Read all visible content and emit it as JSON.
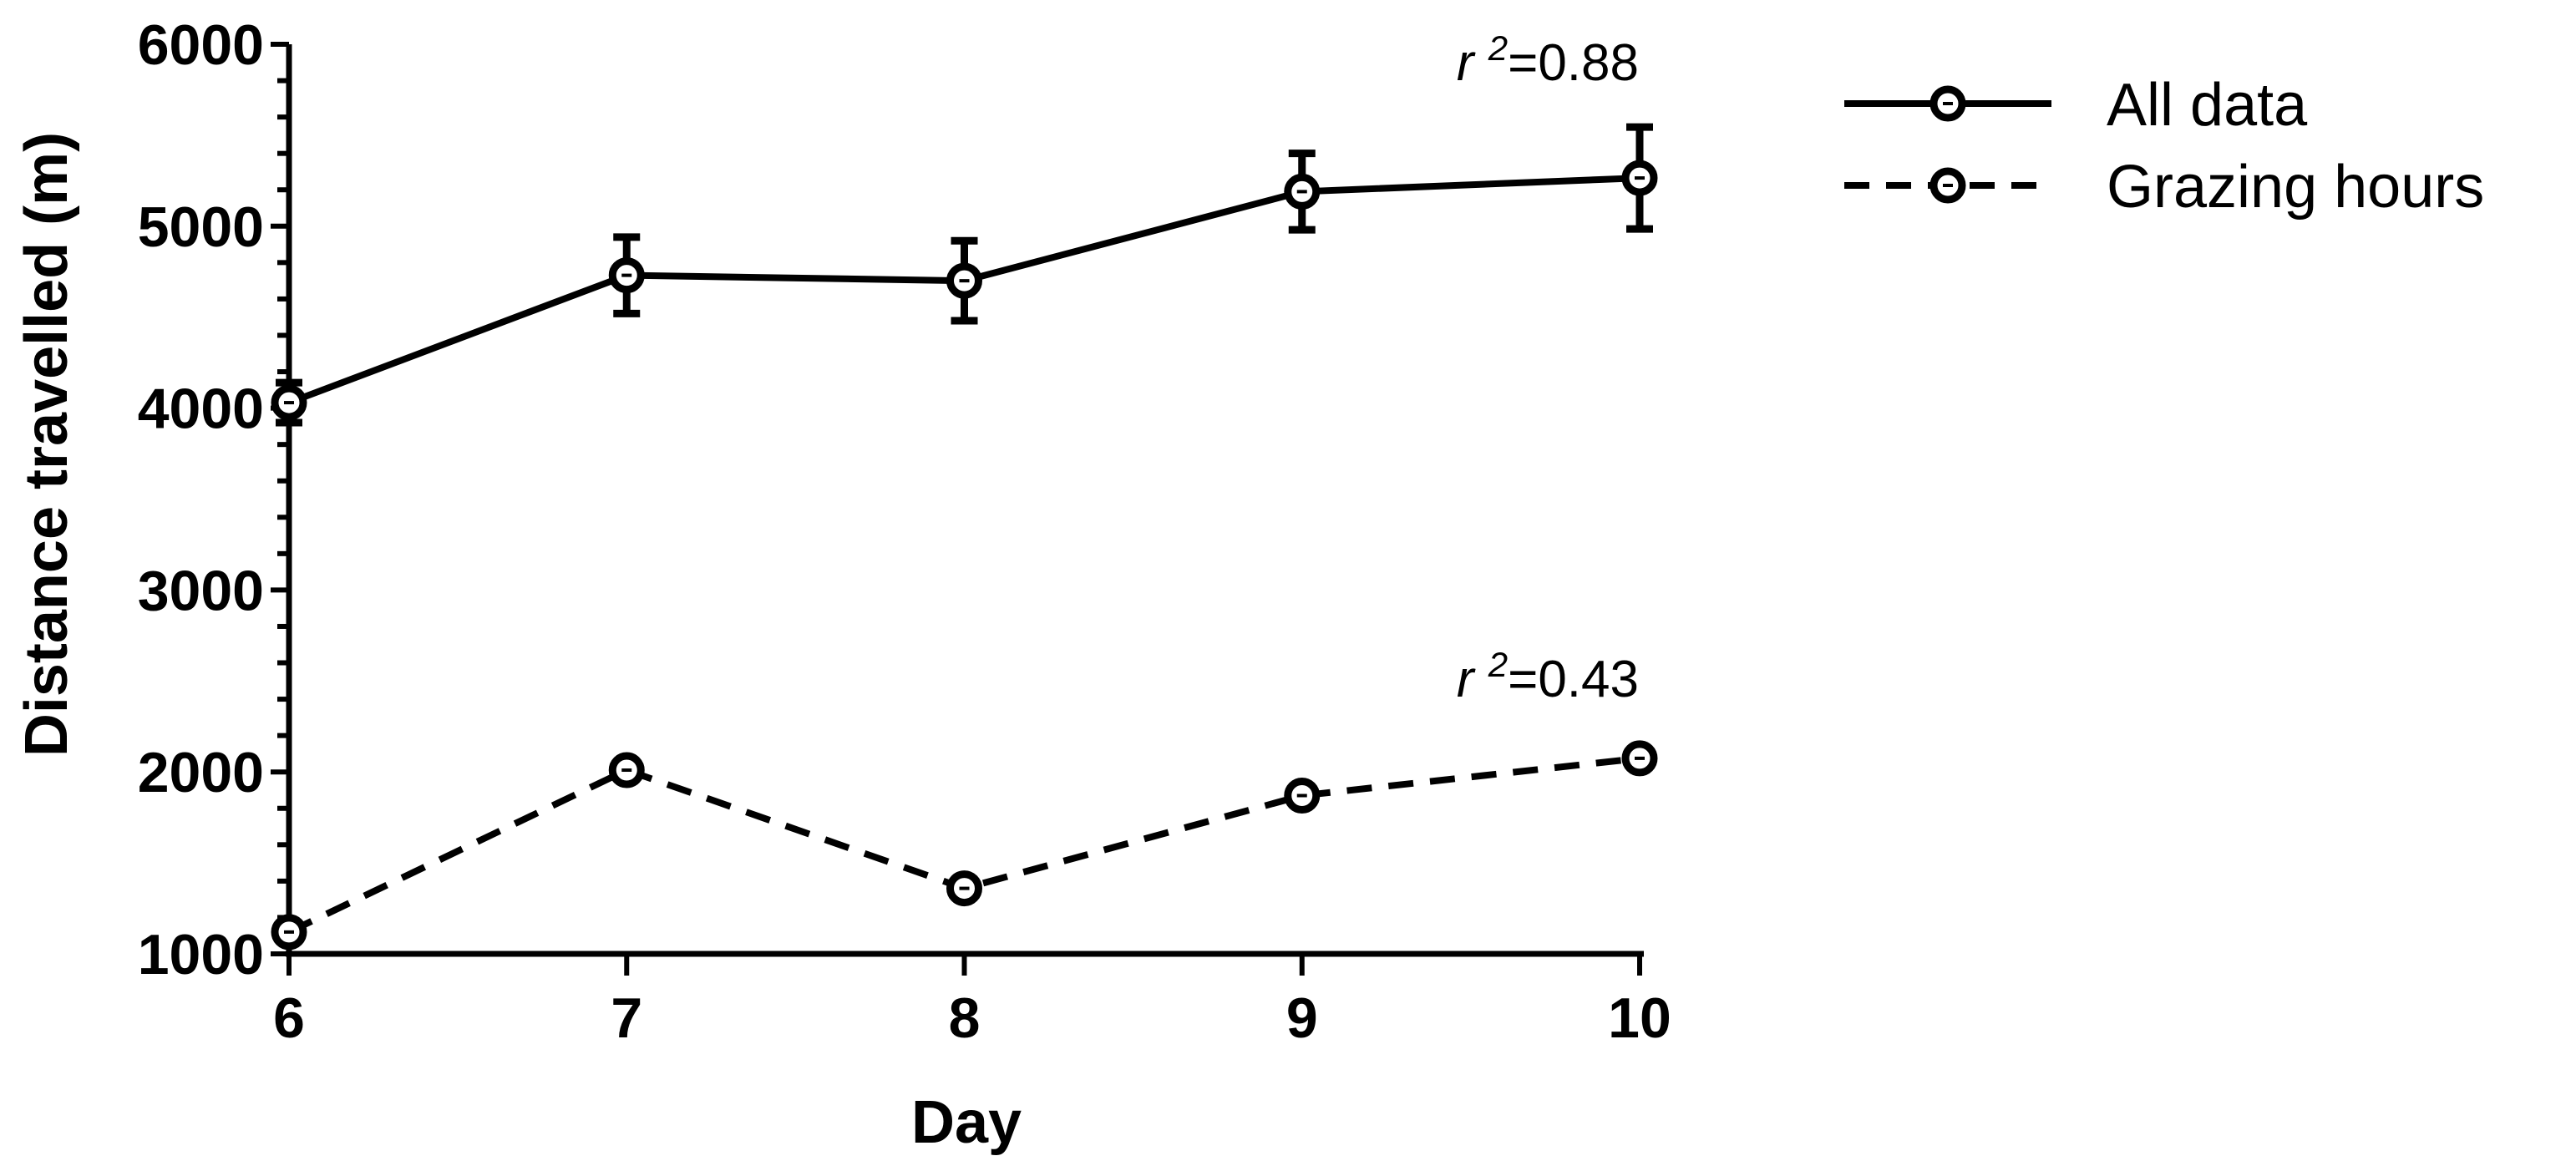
{
  "chart_data": {
    "type": "line",
    "xlabel": "Day",
    "ylabel": "Distance travelled (m)",
    "x": [
      6,
      7,
      8,
      9,
      10
    ],
    "xlim": [
      6,
      10
    ],
    "ylim": [
      1000,
      6000
    ],
    "xticks": [
      "6",
      "7",
      "8",
      "9",
      "10"
    ],
    "yticks": [
      "1000",
      "2000",
      "3000",
      "4000",
      "5000",
      "6000"
    ],
    "grid": false,
    "legend_position": "top-right",
    "series": [
      {
        "name": "All data",
        "style": "solid",
        "values": [
          4030,
          4730,
          4700,
          5190,
          5265
        ],
        "errors": [
          110,
          210,
          220,
          210,
          280
        ],
        "annotation": {
          "prefix": "r",
          "sup": "2",
          "suffix": "=0.88"
        }
      },
      {
        "name": "Grazing hours",
        "style": "dashed",
        "values": [
          1120,
          2010,
          1360,
          1870,
          2075
        ],
        "errors": [
          0,
          0,
          0,
          0,
          0
        ],
        "annotation": {
          "prefix": "r",
          "sup": "2",
          "suffix": "=0.43"
        }
      }
    ]
  }
}
